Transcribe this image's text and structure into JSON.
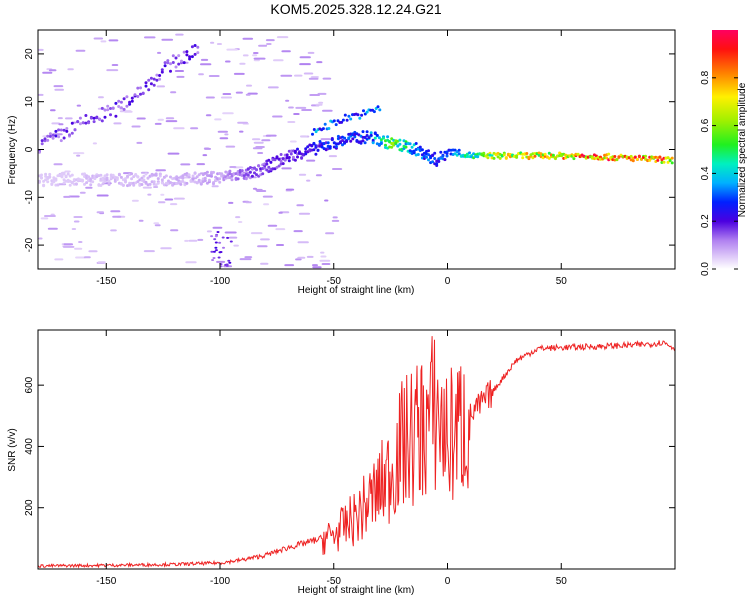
{
  "page_title": "KOM5.2025.328.12.24.G21",
  "chart_data": [
    {
      "type": "heatmap",
      "title": "KOM5.2025.328.12.24.G21",
      "xlabel": "Height of straight line (km)",
      "ylabel": "Frequency (Hz)",
      "xlim": [
        -180,
        100
      ],
      "ylim": [
        -25,
        25
      ],
      "xticks": [
        -150,
        -100,
        -50,
        0,
        50
      ],
      "yticks": [
        -20,
        -10,
        0,
        10,
        20
      ],
      "colorbar": {
        "label": "Normalized spectral amplitude",
        "range": [
          0,
          1
        ],
        "ticks": [
          "0.0",
          "0.2",
          "0.4",
          "0.6",
          "0.8"
        ]
      },
      "ridge": {
        "description_points_x": [
          -180,
          -150,
          -120,
          -100,
          -85,
          -70,
          -55,
          -45,
          -35,
          -25,
          -15,
          -5,
          0,
          10,
          20,
          40,
          60,
          80,
          100
        ],
        "frequency_hz": [
          -6,
          -6,
          -6,
          -5.5,
          -4.5,
          -1,
          1,
          2.5,
          3,
          1.5,
          0.5,
          -2,
          0,
          -1,
          -1,
          -1,
          -1,
          -1.5,
          -2
        ],
        "amplitude": [
          0.05,
          0.07,
          0.08,
          0.1,
          0.18,
          0.2,
          0.28,
          0.3,
          0.35,
          0.6,
          0.4,
          0.3,
          0.35,
          0.5,
          0.7,
          0.8,
          0.9,
          0.95,
          0.85
        ]
      },
      "secondary_ridge": {
        "x": [
          -180,
          -160,
          -145,
          -130,
          -120,
          -110
        ],
        "frequency_hz": [
          1,
          6,
          9,
          15,
          19,
          21
        ]
      },
      "upper_branch": {
        "x": [
          -60,
          -50,
          -45,
          -40,
          -35,
          -30
        ],
        "frequency_hz": [
          4,
          6,
          7,
          7.5,
          8,
          9
        ]
      }
    },
    {
      "type": "line",
      "xlabel": "Height of straight line (km)",
      "ylabel": "SNR (v/v)",
      "xlim": [
        -180,
        100
      ],
      "ylim": [
        0,
        780
      ],
      "xticks": [
        -150,
        -100,
        -50,
        0,
        50
      ],
      "yticks": [
        200,
        400,
        600
      ],
      "series": [
        {
          "name": "SNR",
          "color": "#ee2222",
          "anchor_x": [
            -180,
            -150,
            -120,
            -100,
            -90,
            -80,
            -70,
            -60,
            -50,
            -40,
            -30,
            -25,
            -20,
            -10,
            -5,
            0,
            10,
            20,
            30,
            40,
            60,
            80,
            90,
            95,
            100
          ],
          "anchor_y": [
            10,
            12,
            15,
            20,
            30,
            45,
            70,
            90,
            110,
            170,
            260,
            320,
            400,
            470,
            520,
            420,
            500,
            580,
            680,
            720,
            725,
            730,
            735,
            740,
            720
          ]
        }
      ]
    }
  ]
}
